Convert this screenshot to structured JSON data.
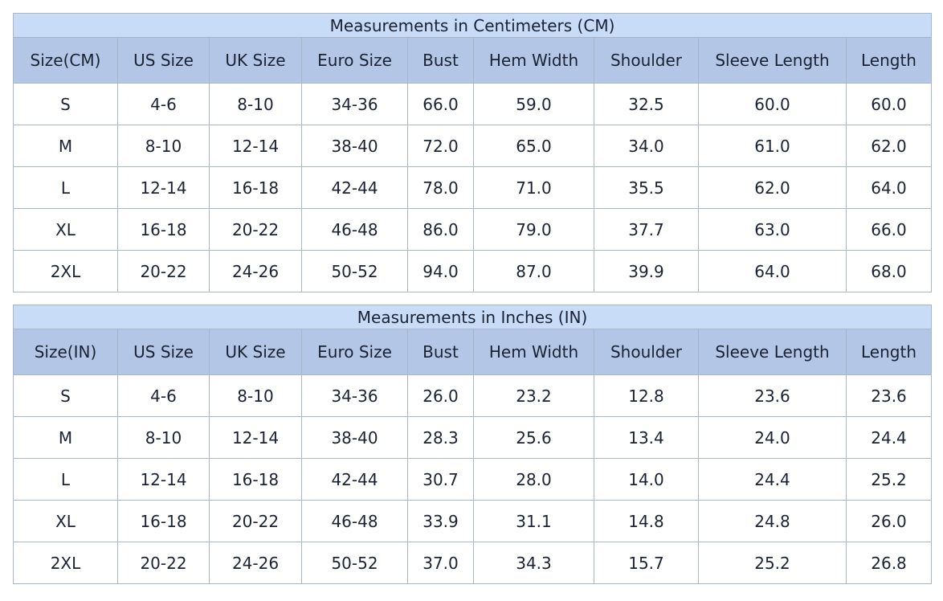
{
  "tables": [
    {
      "title": "Measurements in Centimeters (CM)",
      "headers": [
        "Size(CM)",
        "US Size",
        "UK Size",
        "Euro Size",
        "Bust",
        "Hem Width",
        "Shoulder",
        "Sleeve Length",
        "Length"
      ],
      "rows": [
        [
          "S",
          "4-6",
          "8-10",
          "34-36",
          "66.0",
          "59.0",
          "32.5",
          "60.0",
          "60.0"
        ],
        [
          "M",
          "8-10",
          "12-14",
          "38-40",
          "72.0",
          "65.0",
          "34.0",
          "61.0",
          "62.0"
        ],
        [
          "L",
          "12-14",
          "16-18",
          "42-44",
          "78.0",
          "71.0",
          "35.5",
          "62.0",
          "64.0"
        ],
        [
          "XL",
          "16-18",
          "20-22",
          "46-48",
          "86.0",
          "79.0",
          "37.7",
          "63.0",
          "66.0"
        ],
        [
          "2XL",
          "20-22",
          "24-26",
          "50-52",
          "94.0",
          "87.0",
          "39.9",
          "64.0",
          "68.0"
        ]
      ]
    },
    {
      "title": "Measurements in Inches (IN)",
      "headers": [
        "Size(IN)",
        "US Size",
        "UK Size",
        "Euro Size",
        "Bust",
        "Hem Width",
        "Shoulder",
        "Sleeve Length",
        "Length"
      ],
      "rows": [
        [
          "S",
          "4-6",
          "8-10",
          "34-36",
          "26.0",
          "23.2",
          "12.8",
          "23.6",
          "23.6"
        ],
        [
          "M",
          "8-10",
          "12-14",
          "38-40",
          "28.3",
          "25.6",
          "13.4",
          "24.0",
          "24.4"
        ],
        [
          "L",
          "12-14",
          "16-18",
          "42-44",
          "30.7",
          "28.0",
          "14.0",
          "24.4",
          "25.2"
        ],
        [
          "XL",
          "16-18",
          "20-22",
          "46-48",
          "33.9",
          "31.1",
          "14.8",
          "24.8",
          "26.0"
        ],
        [
          "2XL",
          "20-22",
          "24-26",
          "50-52",
          "37.0",
          "34.3",
          "15.7",
          "25.2",
          "26.8"
        ]
      ]
    }
  ],
  "colors": {
    "caption_bg": "#c8dbf7",
    "header_bg": "#b3c6e5",
    "border": "#a9b6c8"
  }
}
